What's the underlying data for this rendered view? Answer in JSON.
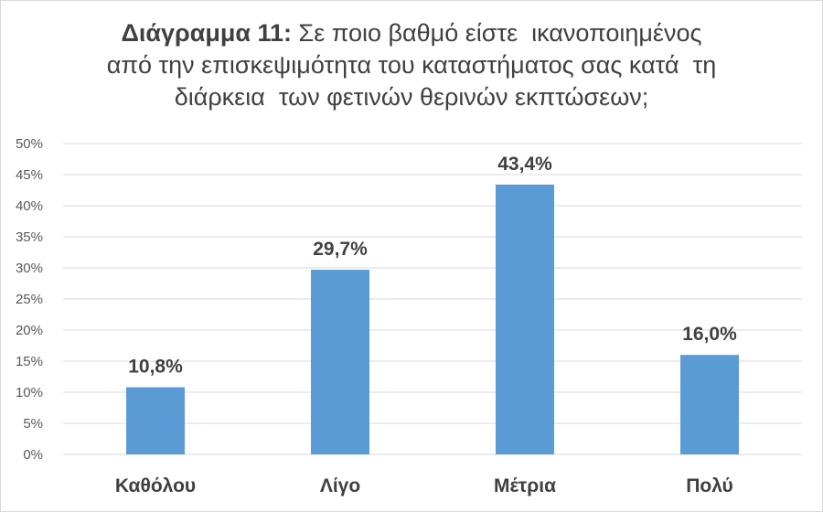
{
  "chart_data": {
    "type": "bar",
    "title": {
      "bold_prefix": "Διάγραμμα 11:",
      "line1_rest": " Σε ποιο βαθμό είστε  ικανοποιημένος",
      "line2": "από την επισκεψιμότητα του καταστήματος σας κατά  τη",
      "line3": "διάρκεια  των φετινών θερινών εκπτώσεων;"
    },
    "categories": [
      "Καθόλου",
      "Λίγο",
      "Μέτρια",
      "Πολύ"
    ],
    "values": [
      10.8,
      29.7,
      43.4,
      16.0
    ],
    "data_labels": [
      "10,8%",
      "29,7%",
      "43,4%",
      "16,0%"
    ],
    "yticks": [
      "0%",
      "5%",
      "10%",
      "15%",
      "20%",
      "25%",
      "30%",
      "35%",
      "40%",
      "45%",
      "50%"
    ],
    "ylim": [
      0,
      50
    ],
    "ytick_step": 5,
    "grid": true,
    "xlabel": "",
    "ylabel": "",
    "colors": {
      "bar": "#5b9bd5",
      "grid": "#d9d9d9",
      "text": "#404040",
      "axis_text": "#595959"
    }
  }
}
